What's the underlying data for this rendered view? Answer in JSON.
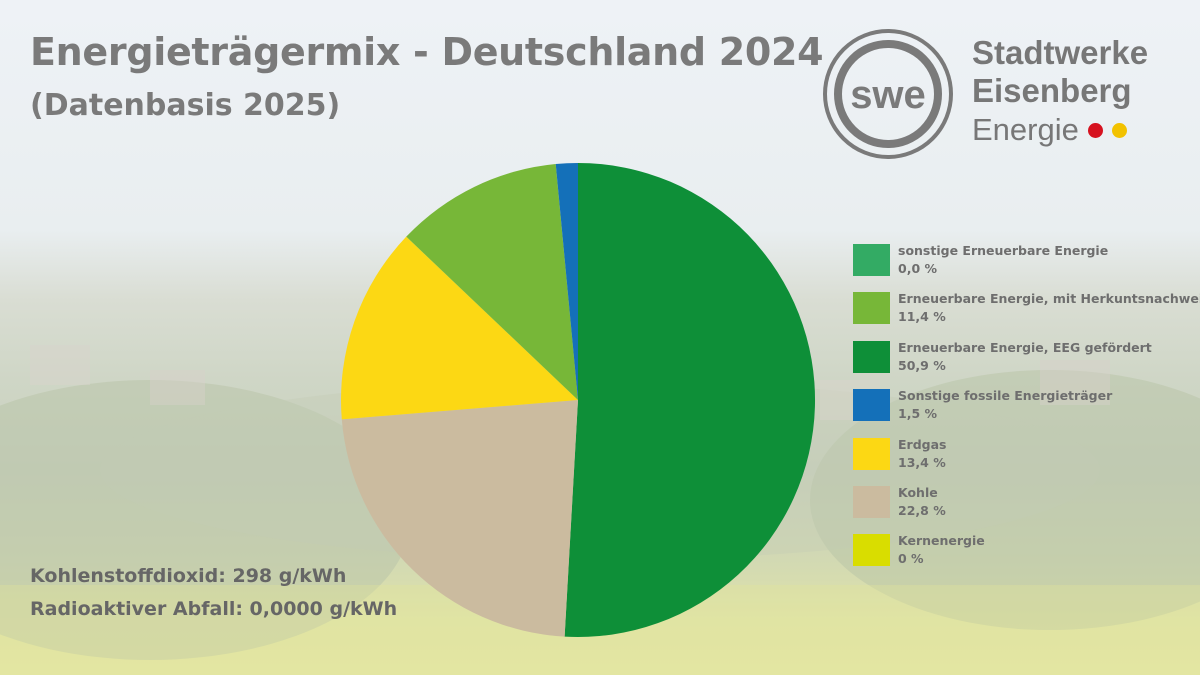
{
  "header": {
    "title": "Energieträgermix - Deutschland 2024",
    "subtitle": "(Datenbasis 2025)"
  },
  "logo": {
    "mark": "swe",
    "line1": "Stadtwerke",
    "line2": "Eisenberg",
    "line3": "Energie",
    "dot_colors": [
      "#d6121f",
      "#f2c200"
    ]
  },
  "chart_data": {
    "type": "pie",
    "title": "Energieträgermix - Deutschland 2024",
    "subtitle": "(Datenbasis 2025)",
    "start_angle_deg": 0,
    "direction": "clockwise",
    "slices": [
      {
        "label": "Erneuerbare Energie, EEG gefördert",
        "value": 50.9,
        "value_label": "50,9 %",
        "color": "#0e8f38"
      },
      {
        "label": "Kohle",
        "value": 22.8,
        "value_label": "22,8 %",
        "color": "#cbbb9f"
      },
      {
        "label": "Erdgas",
        "value": 13.4,
        "value_label": "13,4 %",
        "color": "#fcd814"
      },
      {
        "label": "Erneuerbare Energie, mit Herkuntsnachweis",
        "value": 11.4,
        "value_label": "11,4 %",
        "color": "#77b738"
      },
      {
        "label": "Sonstige fossile Energieträger",
        "value": 1.5,
        "value_label": "1,5 %",
        "color": "#1470b9"
      },
      {
        "label": "sonstige Erneuerbare Energie",
        "value": 0.0,
        "value_label": "0,0 %",
        "color": "#33ab64"
      },
      {
        "label": "Kernenergie",
        "value": 0,
        "value_label": "0 %",
        "color": "#d9dd00"
      }
    ],
    "legend": {
      "placement": "right",
      "entries": [
        {
          "label": "sonstige Erneuerbare Energie",
          "value_label": "0,0 %",
          "color": "#33ab64"
        },
        {
          "label": "Erneuerbare Energie, mit Herkuntsnachweis",
          "value_label": "11,4 %",
          "color": "#77b738"
        },
        {
          "label": "Erneuerbare Energie, EEG gefördert",
          "value_label": "50,9 %",
          "color": "#0e8f38"
        },
        {
          "label": "Sonstige fossile Energieträger",
          "value_label": "1,5 %",
          "color": "#1470b9"
        },
        {
          "label": "Erdgas",
          "value_label": "13,4 %",
          "color": "#fcd814"
        },
        {
          "label": "Kohle",
          "value_label": "22,8 %",
          "color": "#cbbb9f"
        },
        {
          "label": "Kernenergie",
          "value_label": "0 %",
          "color": "#d9dd00"
        }
      ]
    }
  },
  "footer": {
    "co2": "Kohlenstoffdioxid: 298 g/kWh",
    "waste": "Radioaktiver Abfall: 0,0000 g/kWh"
  }
}
